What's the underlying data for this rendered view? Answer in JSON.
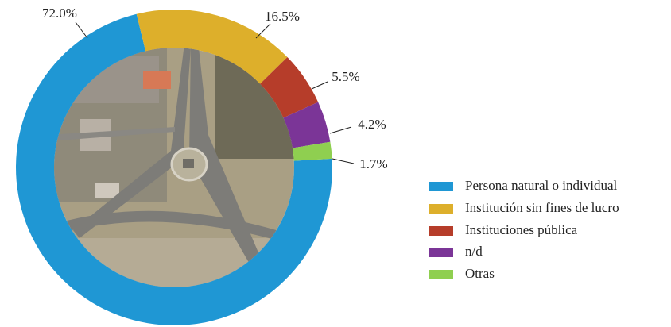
{
  "chart_data": {
    "type": "donut",
    "categories": [
      "Persona natural o individual",
      "Institución sin fines de lucro",
      "Instituciones pública",
      "n/d",
      "Otras"
    ],
    "values": [
      72.0,
      16.5,
      5.5,
      4.2,
      1.7
    ],
    "value_labels": [
      "72.0%",
      "16.5%",
      "5.5%",
      "4.2%",
      "1.7%"
    ],
    "colors": [
      "#1f97d4",
      "#ddaf2b",
      "#b63d2a",
      "#7b3597",
      "#8fcf50"
    ],
    "legend": "right"
  }
}
